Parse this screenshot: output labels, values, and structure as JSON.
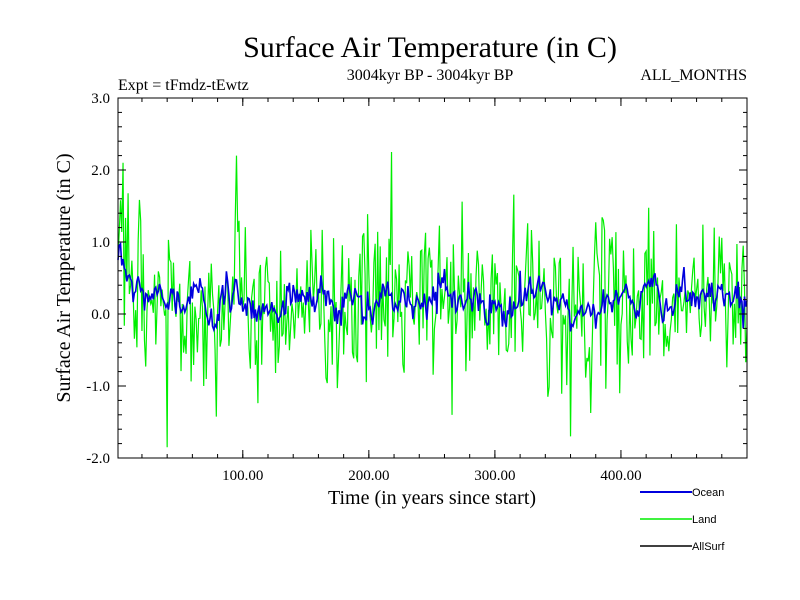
{
  "chart_data": {
    "type": "line",
    "title": "Surface Air Temperature (in C)",
    "subtitle_left": "Expt = tFmdz-tEwtz",
    "subtitle_center": "3004kyr BP - 3004kyr BP",
    "subtitle_right": "ALL_MONTHS",
    "xlabel": "Time (in years since start)",
    "ylabel": "Surface Air Temperature (in C)",
    "xlim": [
      1,
      500
    ],
    "ylim": [
      -2.0,
      3.0
    ],
    "x_ticks": [
      100,
      200,
      300,
      400
    ],
    "x_tick_labels": [
      "100.00",
      "200.00",
      "300.00",
      "400.00"
    ],
    "y_ticks": [
      -2,
      -1,
      0,
      1,
      2,
      3
    ],
    "y_tick_labels": [
      "-2.0",
      "-1.0",
      "0.0",
      "1.0",
      "2.0",
      "3.0"
    ],
    "series": [
      {
        "name": "Land",
        "color": "#00ee00",
        "n_points": 500,
        "approx_mean": 0.1,
        "approx_range": [
          -1.85,
          2.25
        ],
        "anchor_points": [
          [
            1,
            0.8
          ],
          [
            5,
            2.1
          ],
          [
            40,
            -1.85
          ],
          [
            95,
            2.2
          ],
          [
            218,
            2.25
          ],
          [
            360,
            -1.7
          ],
          [
            497,
            0.95
          ]
        ]
      },
      {
        "name": "Ocean",
        "color": "#0000dd",
        "n_points": 500,
        "approx_mean": 0.2,
        "approx_range": [
          -0.5,
          0.8
        ],
        "anchor_points": [
          [
            1,
            0.75
          ],
          [
            50,
            0.1
          ],
          [
            215,
            0.45
          ],
          [
            320,
            0.6
          ],
          [
            400,
            0.25
          ],
          [
            497,
            -0.2
          ]
        ]
      },
      {
        "name": "AllSurf",
        "color": "#000000",
        "n_points": 0
      }
    ],
    "legend": [
      "Ocean",
      "Land",
      "AllSurf"
    ],
    "legend_position": "bottom-right"
  }
}
